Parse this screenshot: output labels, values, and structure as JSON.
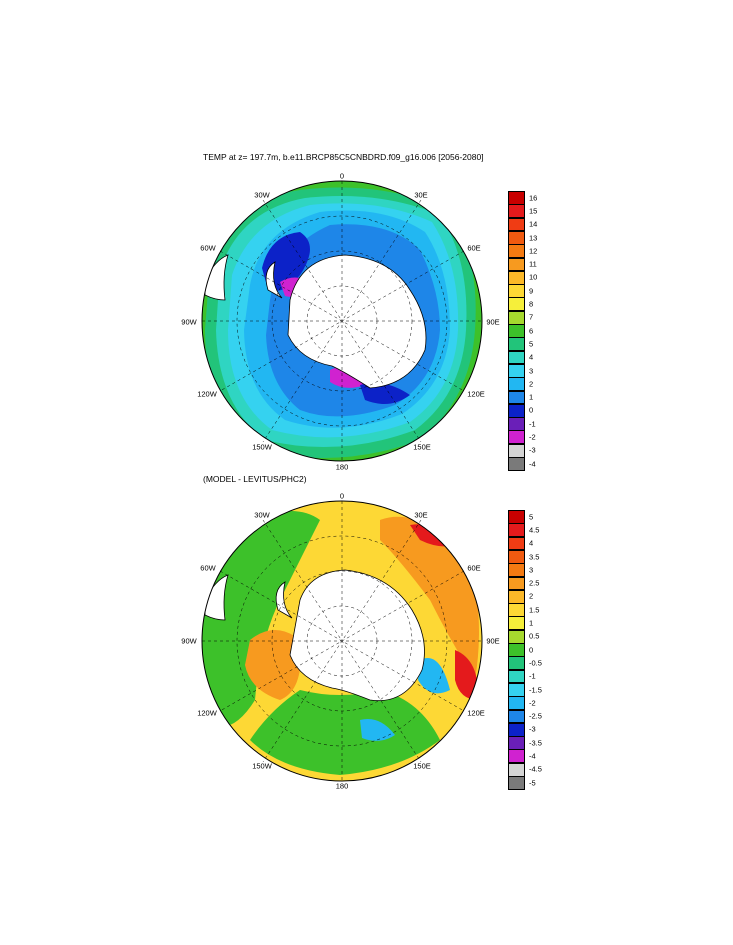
{
  "top_map": {
    "title": "TEMP at z= 197.7m, b.e11.BRCP85C5CNBDRD.f09_g16.006 [2056-2080]",
    "labels": [
      "0",
      "30E",
      "60E",
      "90E",
      "120E",
      "150E",
      "180",
      "150W",
      "120W",
      "90W",
      "60W",
      "30W"
    ],
    "colorbar_labels": [
      "16",
      "15",
      "14",
      "13",
      "12",
      "11",
      "10",
      "9",
      "8",
      "7",
      "6",
      "5",
      "4",
      "3",
      "2",
      "1",
      "0",
      "-1",
      "-2",
      "-3",
      "-4"
    ],
    "colorbar_colors": [
      "#c80000",
      "#e41a1c",
      "#f03c14",
      "#f05a10",
      "#f47a12",
      "#f79a1f",
      "#fbb828",
      "#fdd835",
      "#f6ef3a",
      "#a6d92e",
      "#3dc12a",
      "#22c47a",
      "#2fd5c2",
      "#35d2f0",
      "#22b7f2",
      "#1e86e8",
      "#0c22c8",
      "#6a1fb8",
      "#d022d0",
      "#d4d4d4",
      "#7a7a7a"
    ]
  },
  "bottom_map": {
    "title": "(MODEL - LEVITUS/PHC2)",
    "labels": [
      "0",
      "30E",
      "60E",
      "90E",
      "120E",
      "150E",
      "180",
      "150W",
      "120W",
      "90W",
      "60W",
      "30W"
    ],
    "colorbar_labels": [
      "5",
      "4.5",
      "4",
      "3.5",
      "3",
      "2.5",
      "2",
      "1.5",
      "1",
      "0.5",
      "0",
      "-0.5",
      "-1",
      "-1.5",
      "-2",
      "-2.5",
      "-3",
      "-3.5",
      "-4",
      "-4.5",
      "-5"
    ],
    "colorbar_colors": [
      "#c80000",
      "#e41a1c",
      "#f03c14",
      "#f05a10",
      "#f47a12",
      "#f79a1f",
      "#fbb828",
      "#fdd835",
      "#f6ef3a",
      "#a6d92e",
      "#3dc12a",
      "#22c47a",
      "#2fd5c2",
      "#35d2f0",
      "#22b7f2",
      "#1e86e8",
      "#0c22c8",
      "#6a1fb8",
      "#d022d0",
      "#d4d4d4",
      "#7a7a7a"
    ]
  },
  "colors": {
    "land": "#ffffff",
    "deep_blue": "#0c22c8",
    "mid_blue": "#1e86e8",
    "light_blue": "#22b7f2",
    "cyan": "#2fd5c2",
    "green": "#3dc12a",
    "yellow": "#f6ef3a",
    "orange": "#f79a1f",
    "red": "#e41a1c",
    "magenta": "#d022d0"
  }
}
